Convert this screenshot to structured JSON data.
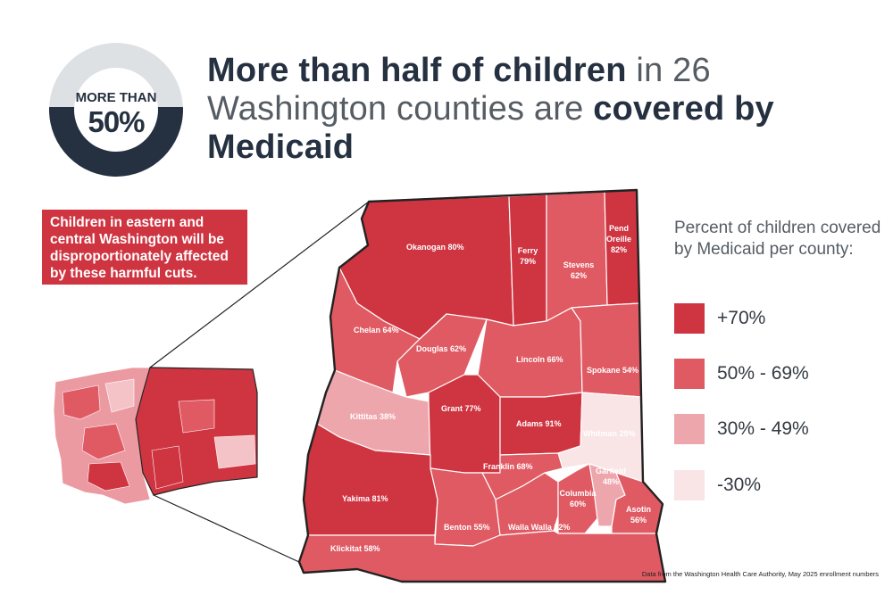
{
  "badge": {
    "line1": "MORE THAN",
    "line2": "50%"
  },
  "headline": {
    "part1": "More than half of children",
    "part2": " in 26 Washington counties are ",
    "part3": "covered by Medicaid"
  },
  "callout": "Children in eastern and central Washington will be disproportionately affected by these harmful cuts.",
  "legend": {
    "title": "Percent of children covered by Medicaid per county:",
    "items": [
      {
        "label": "+70%",
        "color": "#cf3441"
      },
      {
        "label": "50% - 69%",
        "color": "#e05a63"
      },
      {
        "label": "30% - 49%",
        "color": "#eea6ad"
      },
      {
        "label": "-30%",
        "color": "#f9e4e6"
      }
    ]
  },
  "counties": {
    "okanogan": "Okanogan 80%",
    "ferry_name": "Ferry",
    "ferry_pct": "79%",
    "stevens_name": "Stevens",
    "stevens_pct": "62%",
    "pend_name1": "Pend",
    "pend_name2": "Oreille",
    "pend_pct": "82%",
    "chelan": "Chelan 64%",
    "douglas": "Douglas 62%",
    "lincoln": "Lincoln 66%",
    "spokane": "Spokane 54%",
    "kittitas": "Kittitas 38%",
    "grant": "Grant 77%",
    "adams": "Adams 91%",
    "whitman": "Whitman 25%",
    "franklin": "Franklin 68%",
    "garfield_name": "Garfield",
    "garfield_pct": "48%",
    "yakima": "Yakima 81%",
    "columbia_name": "Columbia",
    "columbia_pct": "60%",
    "asotin_name": "Asotin",
    "asotin_pct": "56%",
    "benton": "Benton 55%",
    "walla_walla": "Walla Walla 52%",
    "klickitat": "Klickitat 58%"
  },
  "source": "Data from the Washington Health Care Authority, May 2025 enrollment numbers"
}
